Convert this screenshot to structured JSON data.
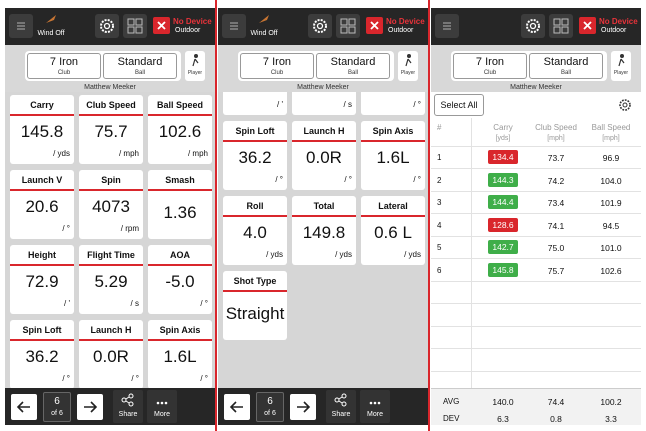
{
  "screens": [
    {
      "toolbar": {
        "wind": "Wind Off",
        "device": "No Device",
        "mode": "Outdoor"
      },
      "selector": {
        "club": "7 Iron",
        "club_label": "Club",
        "ball": "Standard",
        "ball_label": "Ball",
        "player_label": "Player",
        "player_name": "Matthew Meeker"
      },
      "tiles": [
        {
          "label": "Carry",
          "value": "145.8",
          "unit": "/ yds"
        },
        {
          "label": "Club Speed",
          "value": "75.7",
          "unit": "/ mph"
        },
        {
          "label": "Ball Speed",
          "value": "102.6",
          "unit": "/ mph"
        },
        {
          "label": "Launch V",
          "value": "20.6",
          "unit": "/ °"
        },
        {
          "label": "Spin",
          "value": "4073",
          "unit": "/ rpm"
        },
        {
          "label": "Smash",
          "value": "1.36"
        },
        {
          "label": "Height",
          "value": "72.9",
          "unit": "/ '"
        },
        {
          "label": "Flight Time",
          "value": "5.29",
          "unit": "/ s"
        },
        {
          "label": "AOA",
          "value": "-5.0",
          "unit": "/ °"
        },
        {
          "label": "Spin Loft",
          "value": "36.2",
          "unit": "/ °"
        },
        {
          "label": "Launch H",
          "value": "0.0R",
          "unit": "/ °"
        },
        {
          "label": "Spin Axis",
          "value": "1.6L",
          "unit": "/ °"
        }
      ],
      "footer": {
        "shot": "6",
        "of": "of 6",
        "share": "Share",
        "more": "More"
      }
    },
    {
      "toolbar": {
        "wind": "Wind Off",
        "device": "No Device",
        "mode": "Outdoor"
      },
      "selector": {
        "club": "7 Iron",
        "club_label": "Club",
        "ball": "Standard",
        "ball_label": "Ball",
        "player_label": "Player",
        "player_name": "Matthew Meeker"
      },
      "partial_units": [
        "/ '",
        "/ s",
        "/ °"
      ],
      "tiles": [
        {
          "label": "Spin Loft",
          "value": "36.2",
          "unit": "/ °"
        },
        {
          "label": "Launch H",
          "value": "0.0R",
          "unit": "/ °"
        },
        {
          "label": "Spin Axis",
          "value": "1.6L",
          "unit": "/ °"
        },
        {
          "label": "Roll",
          "value": "4.0",
          "unit": "/ yds"
        },
        {
          "label": "Total",
          "value": "149.8",
          "unit": "/ yds"
        },
        {
          "label": "Lateral",
          "value": "0.6 L",
          "unit": "/ yds"
        },
        {
          "label": "Shot Type",
          "value": "Straight"
        }
      ],
      "footer": {
        "shot": "6",
        "of": "of 6",
        "share": "Share",
        "more": "More"
      }
    },
    {
      "toolbar": {
        "wind": "",
        "device": "No Device",
        "mode": "Outdoor"
      },
      "selector": {
        "club": "7 Iron",
        "club_label": "Club",
        "ball": "Standard",
        "ball_label": "Ball",
        "player_label": "Player",
        "player_name": "Matthew Meeker"
      },
      "select_all": "Select All",
      "table": {
        "columns": [
          "#",
          "Carry",
          "Club Speed",
          "Ball Speed"
        ],
        "units": [
          "[yds]",
          "[mph]",
          "[mph]"
        ],
        "rows": [
          [
            "1",
            "134.4",
            "73.7",
            "96.9"
          ],
          [
            "2",
            "144.3",
            "74.2",
            "104.0"
          ],
          [
            "3",
            "144.4",
            "73.4",
            "101.9"
          ],
          [
            "4",
            "128.6",
            "74.1",
            "94.5"
          ],
          [
            "5",
            "142.7",
            "75.0",
            "101.0"
          ],
          [
            "6",
            "145.8",
            "75.7",
            "102.6"
          ]
        ],
        "carry_colors": [
          "#d9262c",
          "#3fae49",
          "#3fae49",
          "#d9262c",
          "#3fae49",
          "#3fae49"
        ],
        "summary": [
          [
            "AVG",
            "140.0",
            "74.4",
            "100.2"
          ],
          [
            "DEV",
            "6.3",
            "0.8",
            "3.3"
          ]
        ]
      }
    }
  ]
}
